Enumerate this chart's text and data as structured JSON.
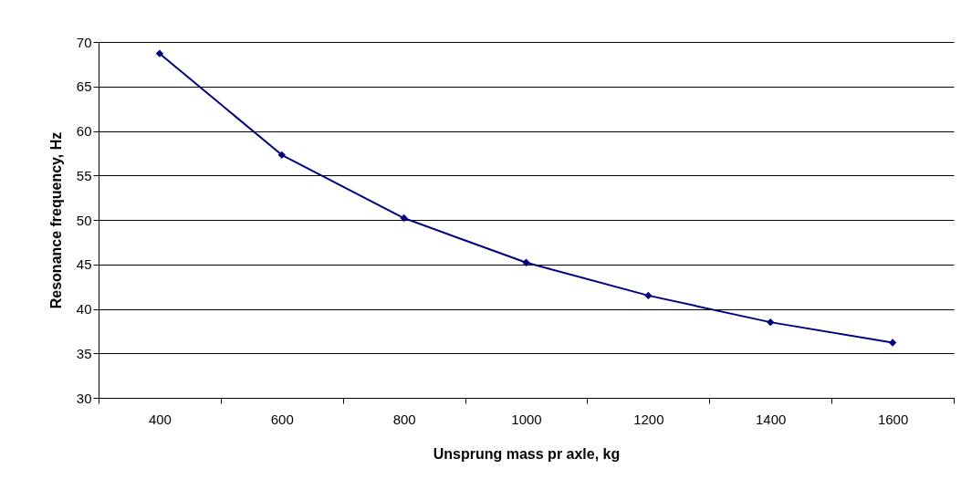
{
  "chart_data": {
    "type": "line",
    "xlabel": "Unsprung mass pr axle, kg",
    "ylabel": "Resonance frequency, Hz",
    "categories": [
      "400",
      "600",
      "800",
      "1000",
      "1200",
      "1400",
      "1600"
    ],
    "series": [
      {
        "color": "#000080",
        "values": [
          68.7,
          57.3,
          50.2,
          45.2,
          41.5,
          38.5,
          36.2
        ]
      }
    ],
    "ylim": [
      30,
      70
    ],
    "yticks": [
      30,
      35,
      40,
      45,
      50,
      55,
      60,
      65,
      70
    ],
    "grid": "y",
    "legend": false,
    "marker": "diamond",
    "line_style": "solid"
  }
}
